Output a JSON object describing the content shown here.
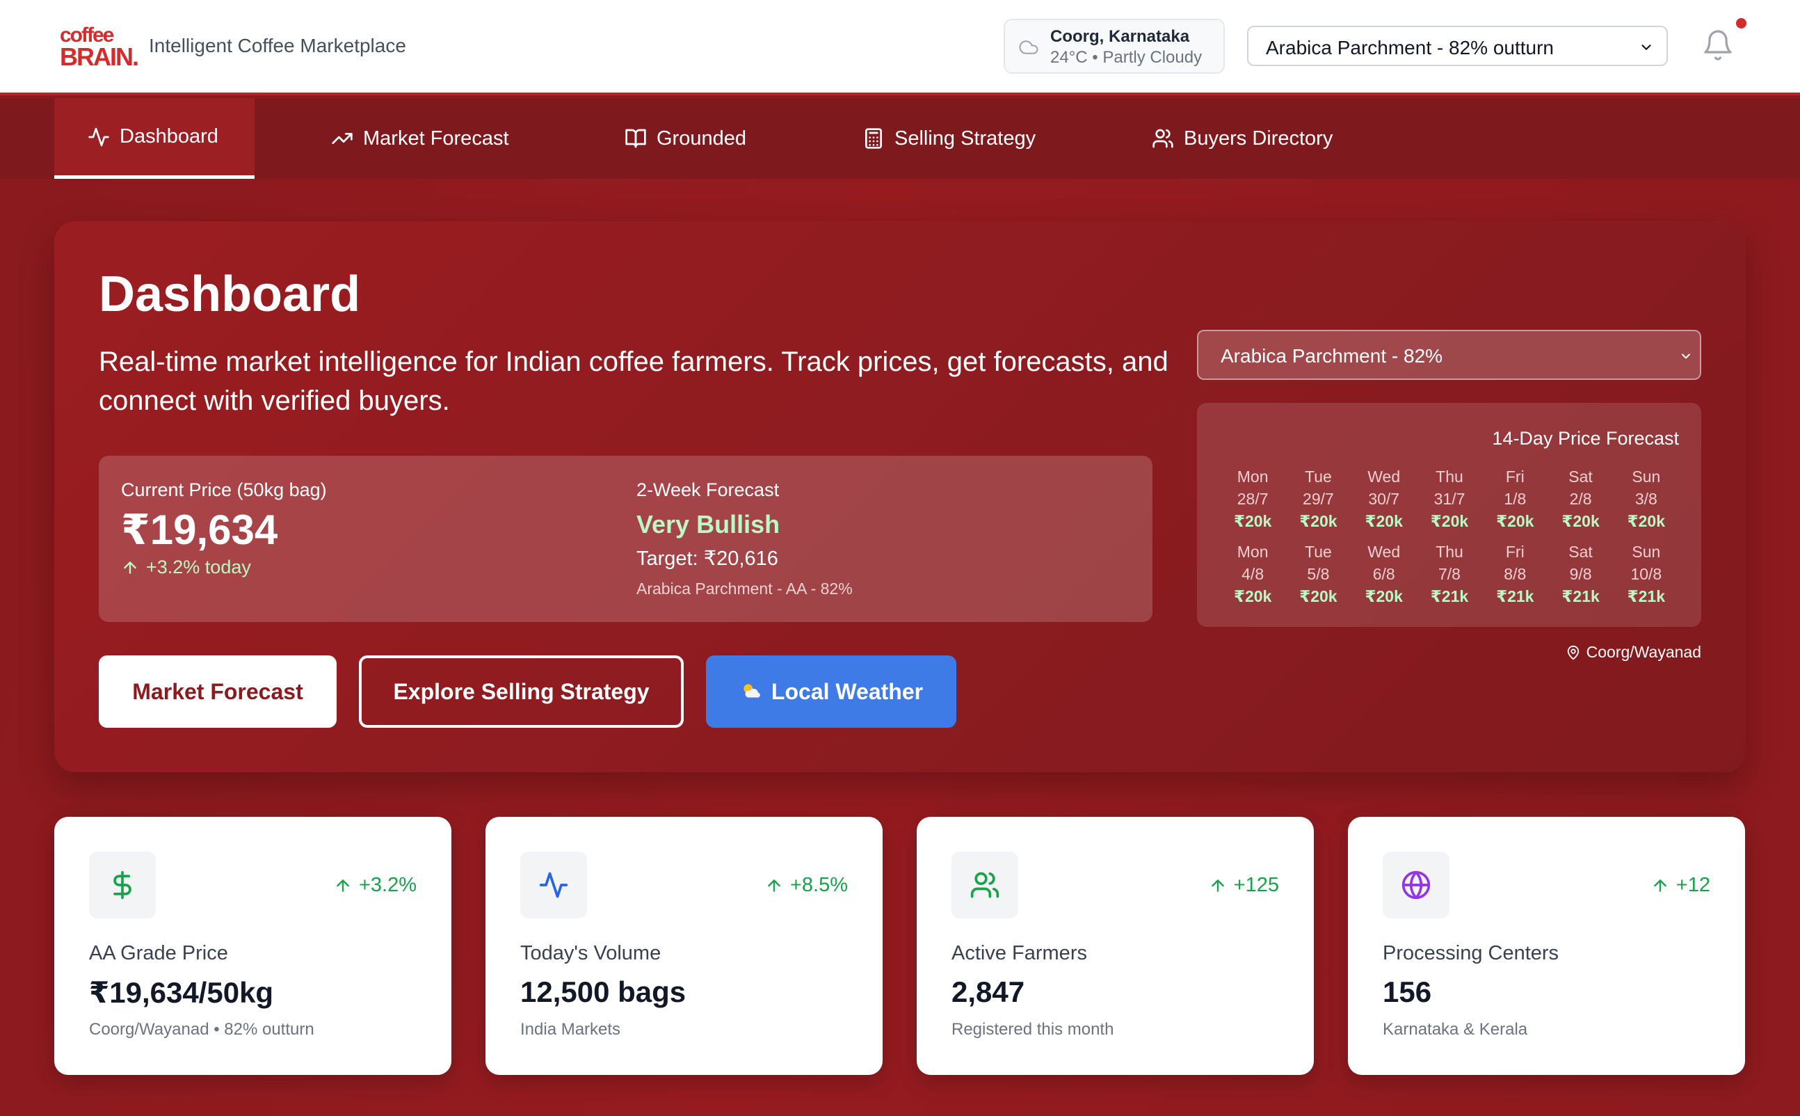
{
  "header": {
    "logo_line1": "coffee",
    "logo_line2": "BRAIN.",
    "tagline": "Intelligent Coffee Marketplace",
    "weather_location": "Coorg, Karnataka",
    "weather_condition": "24°C • Partly Cloudy",
    "variety_selected": "Arabica Parchment - 82% outturn"
  },
  "nav": {
    "tabs": [
      {
        "label": "Dashboard",
        "icon": "activity-icon",
        "active": true
      },
      {
        "label": "Market Forecast",
        "icon": "trending-up-icon"
      },
      {
        "label": "Grounded",
        "icon": "book-open-icon"
      },
      {
        "label": "Selling Strategy",
        "icon": "calculator-icon"
      },
      {
        "label": "Buyers Directory",
        "icon": "users-icon"
      }
    ]
  },
  "hero": {
    "title": "Dashboard",
    "subtitle": "Real-time market intelligence for Indian coffee farmers. Track prices, get forecasts, and connect with verified buyers.",
    "current_price_label": "Current Price (50kg bag)",
    "current_price": "₹19,634",
    "price_change": "+3.2% today",
    "forecast_label": "2-Week Forecast",
    "forecast_outlook": "Very Bullish",
    "forecast_target": "Target: ₹20,616",
    "forecast_variety": "Arabica Parchment - AA - 82%",
    "buttons": {
      "market_forecast": "Market Forecast",
      "selling_strategy": "Explore Selling Strategy",
      "local_weather": "Local Weather"
    }
  },
  "forecast_panel": {
    "variety_selected": "Arabica Parchment - 82%",
    "title": "14-Day Price Forecast",
    "location": "Coorg/Wayanad",
    "days": [
      {
        "day": "Mon",
        "date": "28/7",
        "price": "₹20k"
      },
      {
        "day": "Tue",
        "date": "29/7",
        "price": "₹20k"
      },
      {
        "day": "Wed",
        "date": "30/7",
        "price": "₹20k"
      },
      {
        "day": "Thu",
        "date": "31/7",
        "price": "₹20k"
      },
      {
        "day": "Fri",
        "date": "1/8",
        "price": "₹20k"
      },
      {
        "day": "Sat",
        "date": "2/8",
        "price": "₹20k"
      },
      {
        "day": "Sun",
        "date": "3/8",
        "price": "₹20k"
      },
      {
        "day": "Mon",
        "date": "4/8",
        "price": "₹20k"
      },
      {
        "day": "Tue",
        "date": "5/8",
        "price": "₹20k"
      },
      {
        "day": "Wed",
        "date": "6/8",
        "price": "₹20k"
      },
      {
        "day": "Thu",
        "date": "7/8",
        "price": "₹21k"
      },
      {
        "day": "Fri",
        "date": "8/8",
        "price": "₹21k"
      },
      {
        "day": "Sat",
        "date": "9/8",
        "price": "₹21k"
      },
      {
        "day": "Sun",
        "date": "10/8",
        "price": "₹21k"
      }
    ]
  },
  "stats": [
    {
      "label": "AA Grade Price",
      "value": "₹19,634/50kg",
      "sub": "Coorg/Wayanad • 82% outturn",
      "delta": "+3.2%",
      "icon": "dollar-icon",
      "icon_color": "#16a34a",
      "icon_bg": "#f3f4f6"
    },
    {
      "label": "Today's Volume",
      "value": "12,500 bags",
      "sub": "India Markets",
      "delta": "+8.5%",
      "icon": "activity-icon",
      "icon_color": "#2563eb",
      "icon_bg": "#f3f4f6"
    },
    {
      "label": "Active Farmers",
      "value": "2,847",
      "sub": "Registered this month",
      "delta": "+125",
      "icon": "users-icon",
      "icon_color": "#16a34a",
      "icon_bg": "#f3f4f6"
    },
    {
      "label": "Processing Centers",
      "value": "156",
      "sub": "Karnataka & Kerala",
      "delta": "+12",
      "icon": "globe-icon",
      "icon_color": "#9333ea",
      "icon_bg": "#f3f4f6"
    }
  ],
  "colors": {
    "brand_red": "#d42b2b",
    "page_bg": "#8e1a1d",
    "positive_green": "#16a34a",
    "forecast_green": "#bbf7c7",
    "weather_blue": "#3f7be6"
  }
}
